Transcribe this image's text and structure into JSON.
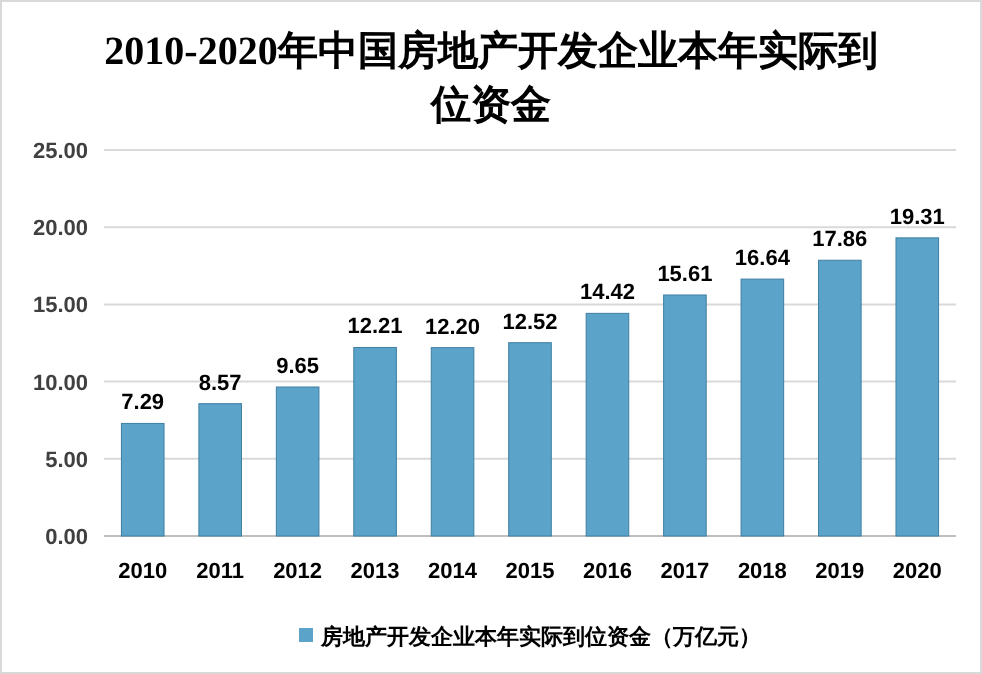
{
  "chart_data": {
    "type": "bar",
    "title": "2010-2020年中国房地产开发企业本年实际到位资金",
    "categories": [
      "2010",
      "2011",
      "2012",
      "2013",
      "2014",
      "2015",
      "2016",
      "2017",
      "2018",
      "2019",
      "2020"
    ],
    "series": [
      {
        "name": "房地产开发企业本年实际到位资金（万亿元）",
        "color": "#5ba3c9",
        "values": [
          7.29,
          8.57,
          9.65,
          12.21,
          12.2,
          12.52,
          14.42,
          15.61,
          16.64,
          17.86,
          19.31
        ],
        "value_labels": [
          "7.29",
          "8.57",
          "9.65",
          "12.21",
          "12.20",
          "12.52",
          "14.42",
          "15.61",
          "16.64",
          "17.86",
          "19.31"
        ]
      }
    ],
    "ylim": [
      0,
      25
    ],
    "yticks": [
      {
        "value": 0,
        "label": "0.00"
      },
      {
        "value": 5,
        "label": "5.00"
      },
      {
        "value": 10,
        "label": "10.00"
      },
      {
        "value": 15,
        "label": "15.00"
      },
      {
        "value": 20,
        "label": "20.00"
      },
      {
        "value": 25,
        "label": "25.00"
      }
    ],
    "grid": "y",
    "legend": "bottom"
  }
}
